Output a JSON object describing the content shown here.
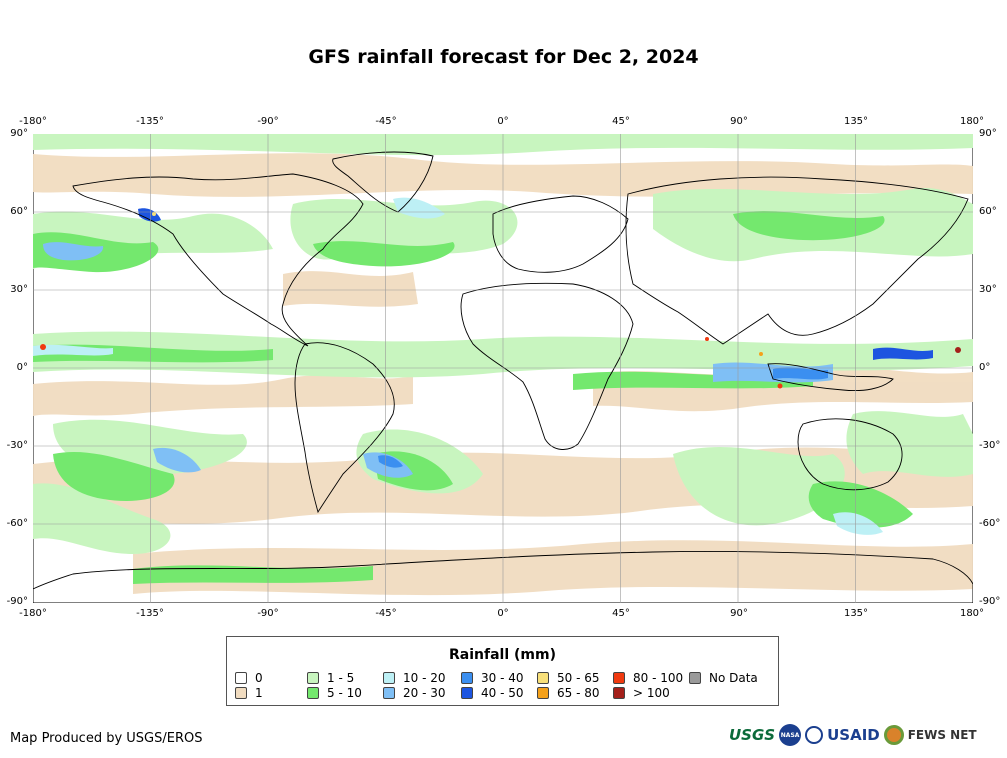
{
  "title": "GFS rainfall forecast for Dec 2, 2024",
  "map": {
    "lon_ticks": [
      "-180°",
      "-135°",
      "-90°",
      "-45°",
      "0°",
      "45°",
      "90°",
      "135°",
      "180°"
    ],
    "lat_ticks": [
      "90°",
      "60°",
      "30°",
      "0°",
      "-30°",
      "-60°",
      "-90°"
    ],
    "grid": true,
    "colors": {
      "ocean_bg": "#ffffff",
      "land_outline": "#000000",
      "grid_line": "#9a9a9a"
    }
  },
  "legend": {
    "title": "Rainfall (mm)",
    "items": [
      {
        "label": "0",
        "color": "#ffffff"
      },
      {
        "label": "1",
        "color": "#f1dcc0"
      },
      {
        "label": "1 - 5",
        "color": "#c8f5bf"
      },
      {
        "label": "5 - 10",
        "color": "#74e86e"
      },
      {
        "label": "10 - 20",
        "color": "#bdf0f5"
      },
      {
        "label": "20 - 30",
        "color": "#7fbff5"
      },
      {
        "label": "30 - 40",
        "color": "#3b8ff0"
      },
      {
        "label": "40 - 50",
        "color": "#1d55e0"
      },
      {
        "label": "50 - 65",
        "color": "#f8e07a"
      },
      {
        "label": "65 - 80",
        "color": "#f5a11a"
      },
      {
        "label": "80 - 100",
        "color": "#f03a10"
      },
      {
        "label": "> 100",
        "color": "#a4201a"
      },
      {
        "label": "No Data",
        "color": "#9a9a9a"
      }
    ]
  },
  "footer": {
    "credit": "Map Produced by USGS/EROS",
    "logos": {
      "usgs": "USGS",
      "nasa": "NASA",
      "usaid": "USAID",
      "fews": "FEWS NET"
    }
  }
}
